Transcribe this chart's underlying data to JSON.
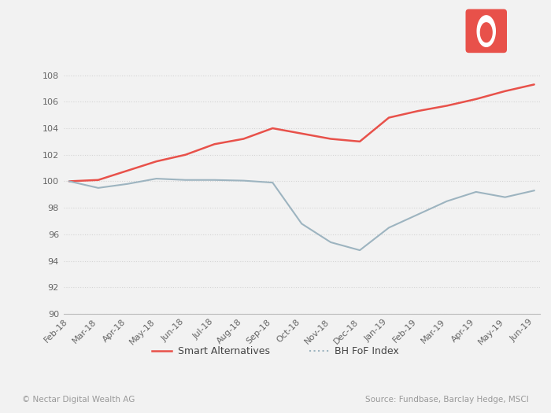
{
  "x_labels": [
    "Feb-18",
    "Mar-18",
    "Apr-18",
    "May-18",
    "Jun-18",
    "Jul-18",
    "Aug-18",
    "Sep-18",
    "Oct-18",
    "Nov-18",
    "Dec-18",
    "Jan-19",
    "Feb-19",
    "Mar-19",
    "Apr-19",
    "May-19",
    "Jun-19"
  ],
  "smart_alternatives": [
    100.0,
    100.1,
    100.8,
    101.5,
    102.0,
    102.8,
    103.2,
    104.0,
    103.6,
    103.2,
    103.0,
    104.8,
    105.3,
    105.7,
    106.2,
    106.8,
    107.3
  ],
  "bh_fof_index": [
    100.0,
    99.5,
    99.8,
    100.2,
    100.1,
    100.1,
    100.05,
    99.9,
    96.8,
    95.4,
    94.8,
    96.5,
    97.5,
    98.5,
    99.2,
    98.8,
    99.3
  ],
  "smart_color": "#e8514a",
  "bh_color": "#9db4c0",
  "background_color": "#f2f2f2",
  "ylim": [
    90,
    109
  ],
  "yticks": [
    90,
    92,
    94,
    96,
    98,
    100,
    102,
    104,
    106,
    108
  ],
  "legend_smart": "Smart Alternatives",
  "legend_bh": "BH FoF Index",
  "footer_left": "© Nectar Digital Wealth AG",
  "footer_right": "Source: Fundbase, Barclay Hedge, MSCI",
  "logo_color": "#e8514a",
  "grid_color": "#d5d5d5",
  "footer_color": "#999999",
  "tick_color": "#666666"
}
